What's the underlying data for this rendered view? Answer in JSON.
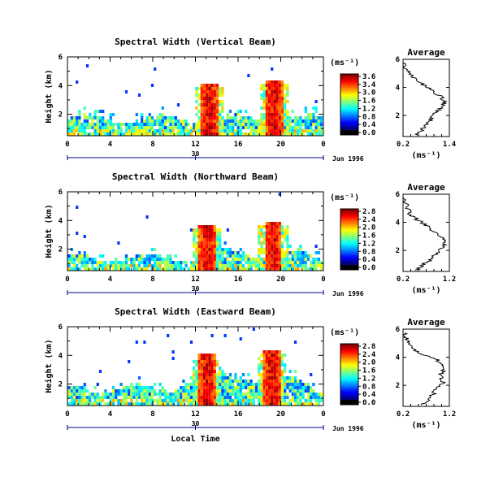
{
  "chart_data": [
    {
      "type": "heatmap",
      "title": "Spectral Width (Vertical Beam)",
      "ylabel": "Height (km)",
      "xlabel": "",
      "x_ticks": [
        "0",
        "4",
        "8",
        "12",
        "16",
        "20",
        "0"
      ],
      "y_ticks": [
        "2",
        "4",
        "6"
      ],
      "xlim": [
        0,
        24
      ],
      "ylim": [
        0.5,
        6
      ],
      "date_tick": "30",
      "date_label": "Jun 1996",
      "colorbar": {
        "unit": "(ms⁻¹)",
        "ticks": [
          "3.6",
          "3.4",
          "3.0",
          "1.6",
          "1.2",
          "0.8",
          "0.4",
          "0.0"
        ]
      },
      "average": {
        "title": "Average",
        "xlabel": "(ms⁻¹)",
        "x_ticks": [
          "0.2",
          "1.4"
        ],
        "y_ticks": [
          "2",
          "4",
          "6"
        ],
        "xlim": [
          0.2,
          1.4
        ],
        "ylim": [
          0.5,
          6
        ],
        "profile": [
          [
            0.55,
            0.6
          ],
          [
            0.7,
            1.0
          ],
          [
            0.85,
            1.4
          ],
          [
            0.95,
            1.8
          ],
          [
            1.05,
            2.2
          ],
          [
            1.2,
            2.6
          ],
          [
            1.3,
            3.0
          ],
          [
            1.15,
            3.4
          ],
          [
            0.95,
            3.8
          ],
          [
            0.7,
            4.2
          ],
          [
            0.5,
            4.6
          ],
          [
            0.35,
            5.0
          ],
          [
            0.25,
            5.4
          ],
          [
            0.22,
            5.8
          ]
        ]
      },
      "events": [
        {
          "time": 13.2,
          "top": 4.3
        },
        {
          "time": 19.3,
          "top": 4.5
        }
      ]
    },
    {
      "type": "heatmap",
      "title": "Spectral Width (Northward Beam)",
      "ylabel": "Height (km)",
      "xlabel": "",
      "x_ticks": [
        "0",
        "4",
        "8",
        "12",
        "16",
        "20",
        "0"
      ],
      "y_ticks": [
        "2",
        "4",
        "6"
      ],
      "xlim": [
        0,
        24
      ],
      "ylim": [
        0.5,
        6
      ],
      "date_tick": "30",
      "date_label": "Jun 1996",
      "colorbar": {
        "unit": "(ms⁻¹)",
        "ticks": [
          "2.8",
          "2.4",
          "2.0",
          "1.6",
          "1.2",
          "0.8",
          "0.4",
          "0.0"
        ]
      },
      "average": {
        "title": "Average",
        "xlabel": "(ms⁻¹)",
        "x_ticks": [
          "0.2",
          "1.2"
        ],
        "y_ticks": [
          "2",
          "4",
          "6"
        ],
        "xlim": [
          0.2,
          1.2
        ],
        "ylim": [
          0.5,
          6
        ],
        "profile": [
          [
            0.5,
            0.6
          ],
          [
            0.65,
            1.0
          ],
          [
            0.8,
            1.4
          ],
          [
            0.95,
            1.8
          ],
          [
            1.05,
            2.2
          ],
          [
            1.1,
            2.6
          ],
          [
            1.0,
            3.0
          ],
          [
            0.85,
            3.4
          ],
          [
            0.7,
            3.8
          ],
          [
            0.5,
            4.2
          ],
          [
            0.35,
            4.6
          ],
          [
            0.3,
            5.0
          ],
          [
            0.25,
            5.4
          ],
          [
            0.22,
            5.8
          ]
        ]
      },
      "events": [
        {
          "time": 13.0,
          "top": 3.8
        },
        {
          "time": 19.2,
          "top": 4.0
        }
      ]
    },
    {
      "type": "heatmap",
      "title": "Spectral Width (Eastward Beam)",
      "ylabel": "Height (km)",
      "xlabel": "Local Time",
      "x_ticks": [
        "0",
        "4",
        "8",
        "12",
        "16",
        "20",
        "0"
      ],
      "y_ticks": [
        "2",
        "4",
        "6"
      ],
      "xlim": [
        0,
        24
      ],
      "ylim": [
        0.5,
        6
      ],
      "date_tick": "30",
      "date_label": "Jun 1996",
      "colorbar": {
        "unit": "(ms⁻¹)",
        "ticks": [
          "2.8",
          "2.4",
          "2.0",
          "1.6",
          "1.2",
          "0.8",
          "0.4",
          "0.0"
        ]
      },
      "average": {
        "title": "Average",
        "xlabel": "(ms⁻¹)",
        "x_ticks": [
          "0.2",
          "1.2"
        ],
        "y_ticks": [
          "2",
          "4",
          "6"
        ],
        "xlim": [
          0.2,
          1.2
        ],
        "ylim": [
          0.5,
          6
        ],
        "profile": [
          [
            0.6,
            0.6
          ],
          [
            0.75,
            1.0
          ],
          [
            0.85,
            1.4
          ],
          [
            0.95,
            1.8
          ],
          [
            1.05,
            2.2
          ],
          [
            1.0,
            2.6
          ],
          [
            1.05,
            3.0
          ],
          [
            1.1,
            3.4
          ],
          [
            0.95,
            3.8
          ],
          [
            0.6,
            4.2
          ],
          [
            0.4,
            4.6
          ],
          [
            0.3,
            5.0
          ],
          [
            0.25,
            5.4
          ],
          [
            0.22,
            5.8
          ]
        ]
      },
      "events": [
        {
          "time": 13.0,
          "top": 4.2
        },
        {
          "time": 19.1,
          "top": 4.5
        }
      ]
    }
  ]
}
